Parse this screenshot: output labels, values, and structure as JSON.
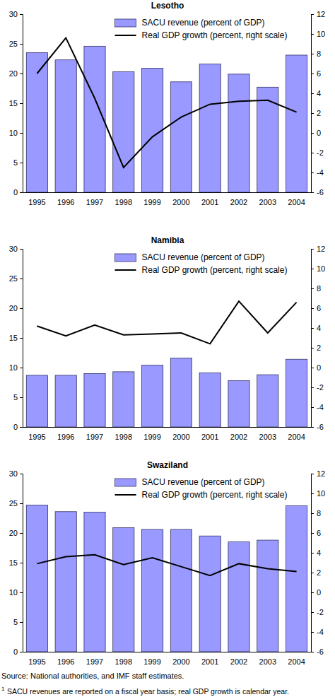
{
  "chart_data": [
    {
      "type": "bar",
      "title": "Lesotho",
      "legend": "top",
      "grid": false,
      "categories": [
        "1995",
        "1996",
        "1997",
        "1998",
        "1999",
        "2000",
        "2001",
        "2002",
        "2003",
        "2004"
      ],
      "ylim": [
        0,
        30
      ],
      "yticks": [
        0,
        5,
        10,
        15,
        20,
        25,
        30
      ],
      "y2lim": [
        -6,
        12
      ],
      "y2ticks": [
        -6,
        -4,
        -2,
        0,
        2,
        4,
        6,
        8,
        10,
        12
      ],
      "series": [
        {
          "name": "SACU revenue (percent of GDP)",
          "type": "bar",
          "color": "#9999ff",
          "values": [
            23.5,
            22.3,
            24.6,
            20.3,
            20.9,
            18.6,
            21.6,
            19.9,
            17.7,
            23.1
          ]
        },
        {
          "name": "Real GDP growth (percent, right scale)",
          "type": "line",
          "axis": "y2",
          "color": "#000000",
          "values": [
            6.0,
            9.6,
            3.5,
            -3.5,
            -0.4,
            1.6,
            2.9,
            3.2,
            3.3,
            2.1
          ]
        }
      ]
    },
    {
      "type": "bar",
      "title": "Namibia",
      "legend": "top",
      "grid": false,
      "categories": [
        "1995",
        "1996",
        "1997",
        "1998",
        "1999",
        "2000",
        "2001",
        "2002",
        "2003",
        "2004"
      ],
      "ylim": [
        0,
        30
      ],
      "yticks": [
        0,
        5,
        10,
        15,
        20,
        25,
        30
      ],
      "y2lim": [
        -6,
        12
      ],
      "y2ticks": [
        -6,
        -4,
        -2,
        0,
        2,
        4,
        6,
        8,
        10,
        12
      ],
      "series": [
        {
          "name": "SACU revenue (percent of GDP)",
          "type": "bar",
          "color": "#9999ff",
          "values": [
            8.7,
            8.7,
            9.0,
            9.3,
            10.4,
            11.6,
            9.1,
            7.8,
            8.8,
            11.4
          ]
        },
        {
          "name": "Real GDP growth (percent, right scale)",
          "type": "line",
          "axis": "y2",
          "color": "#000000",
          "values": [
            4.2,
            3.2,
            4.3,
            3.3,
            3.4,
            3.5,
            2.4,
            6.7,
            3.5,
            6.6
          ]
        }
      ]
    },
    {
      "type": "bar",
      "title": "Swaziland",
      "legend": "top",
      "grid": false,
      "categories": [
        "1995",
        "1996",
        "1997",
        "1998",
        "1999",
        "2000",
        "2001",
        "2002",
        "2003",
        "2004"
      ],
      "ylim": [
        0,
        30
      ],
      "yticks": [
        0,
        5,
        10,
        15,
        20,
        25,
        30
      ],
      "y2lim": [
        -6,
        12
      ],
      "y2ticks": [
        -6,
        -4,
        -2,
        0,
        2,
        4,
        6,
        8,
        10,
        12
      ],
      "series": [
        {
          "name": "SACU revenue (percent of GDP)",
          "type": "bar",
          "color": "#9999ff",
          "values": [
            24.7,
            23.6,
            23.5,
            20.9,
            20.6,
            20.6,
            19.5,
            18.5,
            18.8,
            24.6
          ]
        },
        {
          "name": "Real GDP growth (percent, right scale)",
          "type": "line",
          "axis": "y2",
          "color": "#000000",
          "values": [
            2.9,
            3.6,
            3.8,
            2.8,
            3.5,
            2.6,
            1.7,
            2.9,
            2.4,
            2.1
          ]
        }
      ]
    }
  ],
  "notes": {
    "source": "Source: National authorities, and IMF staff estimates.",
    "footnote": {
      "marker": "1",
      "text": "SACU revenues are reported on a fiscal year basis; real GDP growth is calendar year."
    }
  }
}
